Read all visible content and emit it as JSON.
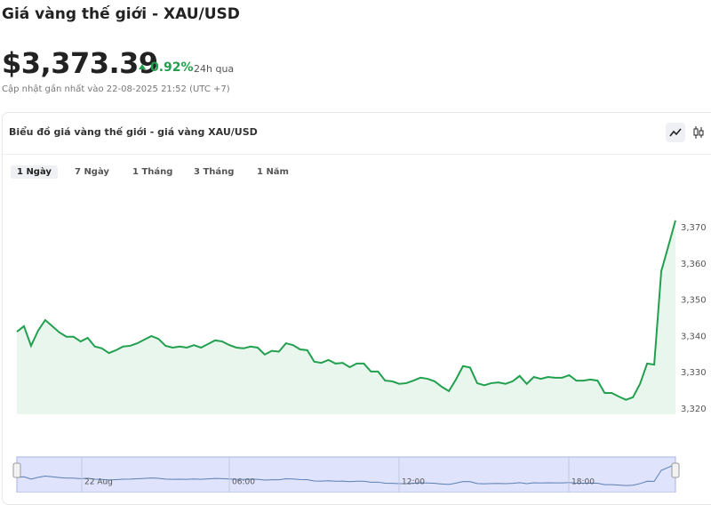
{
  "header": {
    "title": "Giá vàng thế giới - XAU/USD",
    "price": "$3,373.39",
    "change": "0.92%",
    "change_period": "24h qua",
    "updated": "Cập nhật gần nhất vào 22-08-2025 21:52 (UTC +7)"
  },
  "card": {
    "title": "Biểu đồ giá vàng thế giới - giá vàng XAU/USD",
    "tabs": [
      "1 Ngày",
      "7 Ngày",
      "1 Tháng",
      "3 Tháng",
      "1 Năm"
    ]
  },
  "chart_data": {
    "type": "line",
    "color": "#22a04f",
    "values": [
      3341.3,
      3342.8,
      3337.4,
      3341.6,
      3344.5,
      3342.8,
      3341.1,
      3339.9,
      3339.9,
      3338.6,
      3339.6,
      3337.2,
      3336.7,
      3335.4,
      3336.2,
      3337.2,
      3337.4,
      3338.1,
      3339.1,
      3340.1,
      3339.3,
      3337.4,
      3336.9,
      3337.2,
      3336.9,
      3337.6,
      3336.9,
      3337.9,
      3338.9,
      3338.6,
      3337.6,
      3336.9,
      3336.7,
      3337.2,
      3336.9,
      3335.0,
      3336.0,
      3335.8,
      3338.1,
      3337.6,
      3336.4,
      3336.2,
      3333.0,
      3332.7,
      3333.5,
      3332.5,
      3332.7,
      3331.5,
      3332.5,
      3332.5,
      3330.3,
      3330.3,
      3327.8,
      3327.6,
      3326.9,
      3327.1,
      3327.8,
      3328.6,
      3328.3,
      3327.6,
      3326.1,
      3324.9,
      3328.1,
      3331.8,
      3331.4,
      3327.1,
      3326.5,
      3327.1,
      3327.3,
      3326.9,
      3327.6,
      3329.1,
      3326.9,
      3328.8,
      3328.3,
      3328.8,
      3328.6,
      3328.6,
      3329.3,
      3327.8,
      3327.8,
      3328.1,
      3327.8,
      3324.4,
      3324.4,
      3323.4,
      3322.5,
      3323.2,
      3326.9,
      3332.5,
      3332.2,
      3358.0,
      3364.9,
      3372.0
    ],
    "ylim": [
      3318.5,
      3380.8
    ],
    "yticks": [
      {
        "value": 3320,
        "label": "3,320"
      },
      {
        "value": 3330,
        "label": "3,330"
      },
      {
        "value": 3340,
        "label": "3,340"
      },
      {
        "value": 3350,
        "label": "3,350"
      },
      {
        "value": 3360,
        "label": "3,360"
      },
      {
        "value": 3370,
        "label": "3,370"
      }
    ],
    "navigator_labels": [
      "22 Aug",
      "06:00",
      "12:00",
      "18:00"
    ]
  }
}
